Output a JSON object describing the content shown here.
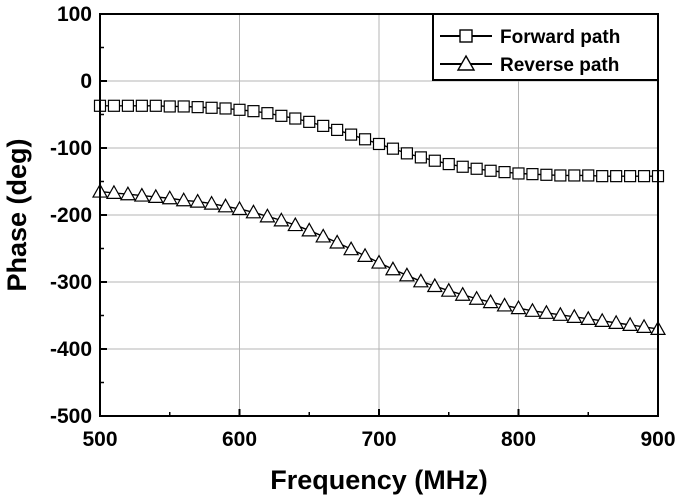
{
  "chart_data": {
    "type": "line",
    "xlabel": "Frequency (MHz)",
    "ylabel": "Phase (deg)",
    "xlim": [
      500,
      900
    ],
    "ylim": [
      -500,
      100
    ],
    "x_ticks": [
      500,
      600,
      700,
      800,
      900
    ],
    "y_ticks": [
      100,
      0,
      -100,
      -200,
      -300,
      -400,
      -500
    ],
    "grid": true,
    "legend_position": "top-right",
    "x": [
      500,
      510,
      520,
      530,
      540,
      550,
      560,
      570,
      580,
      590,
      600,
      610,
      620,
      630,
      640,
      650,
      660,
      670,
      680,
      690,
      700,
      710,
      720,
      730,
      740,
      750,
      760,
      770,
      780,
      790,
      800,
      810,
      820,
      830,
      840,
      850,
      860,
      870,
      880,
      890,
      900
    ],
    "series": [
      {
        "name": "Forward path",
        "marker": "square",
        "values": [
          -37,
          -37,
          -37,
          -37,
          -37,
          -38,
          -38,
          -39,
          -40,
          -41,
          -43,
          -45,
          -48,
          -52,
          -56,
          -61,
          -67,
          -73,
          -80,
          -87,
          -94,
          -101,
          -108,
          -114,
          -119,
          -124,
          -128,
          -131,
          -134,
          -136,
          -138,
          -139,
          -140,
          -141,
          -141,
          -141,
          -142,
          -142,
          -142,
          -142,
          -142
        ]
      },
      {
        "name": "Reverse path",
        "marker": "triangle",
        "values": [
          -165,
          -167,
          -169,
          -171,
          -173,
          -175,
          -178,
          -180,
          -183,
          -187,
          -191,
          -196,
          -202,
          -208,
          -215,
          -223,
          -232,
          -241,
          -251,
          -261,
          -271,
          -281,
          -290,
          -299,
          -306,
          -313,
          -319,
          -325,
          -330,
          -335,
          -339,
          -343,
          -346,
          -349,
          -352,
          -355,
          -358,
          -361,
          -364,
          -367,
          -370
        ]
      }
    ]
  }
}
